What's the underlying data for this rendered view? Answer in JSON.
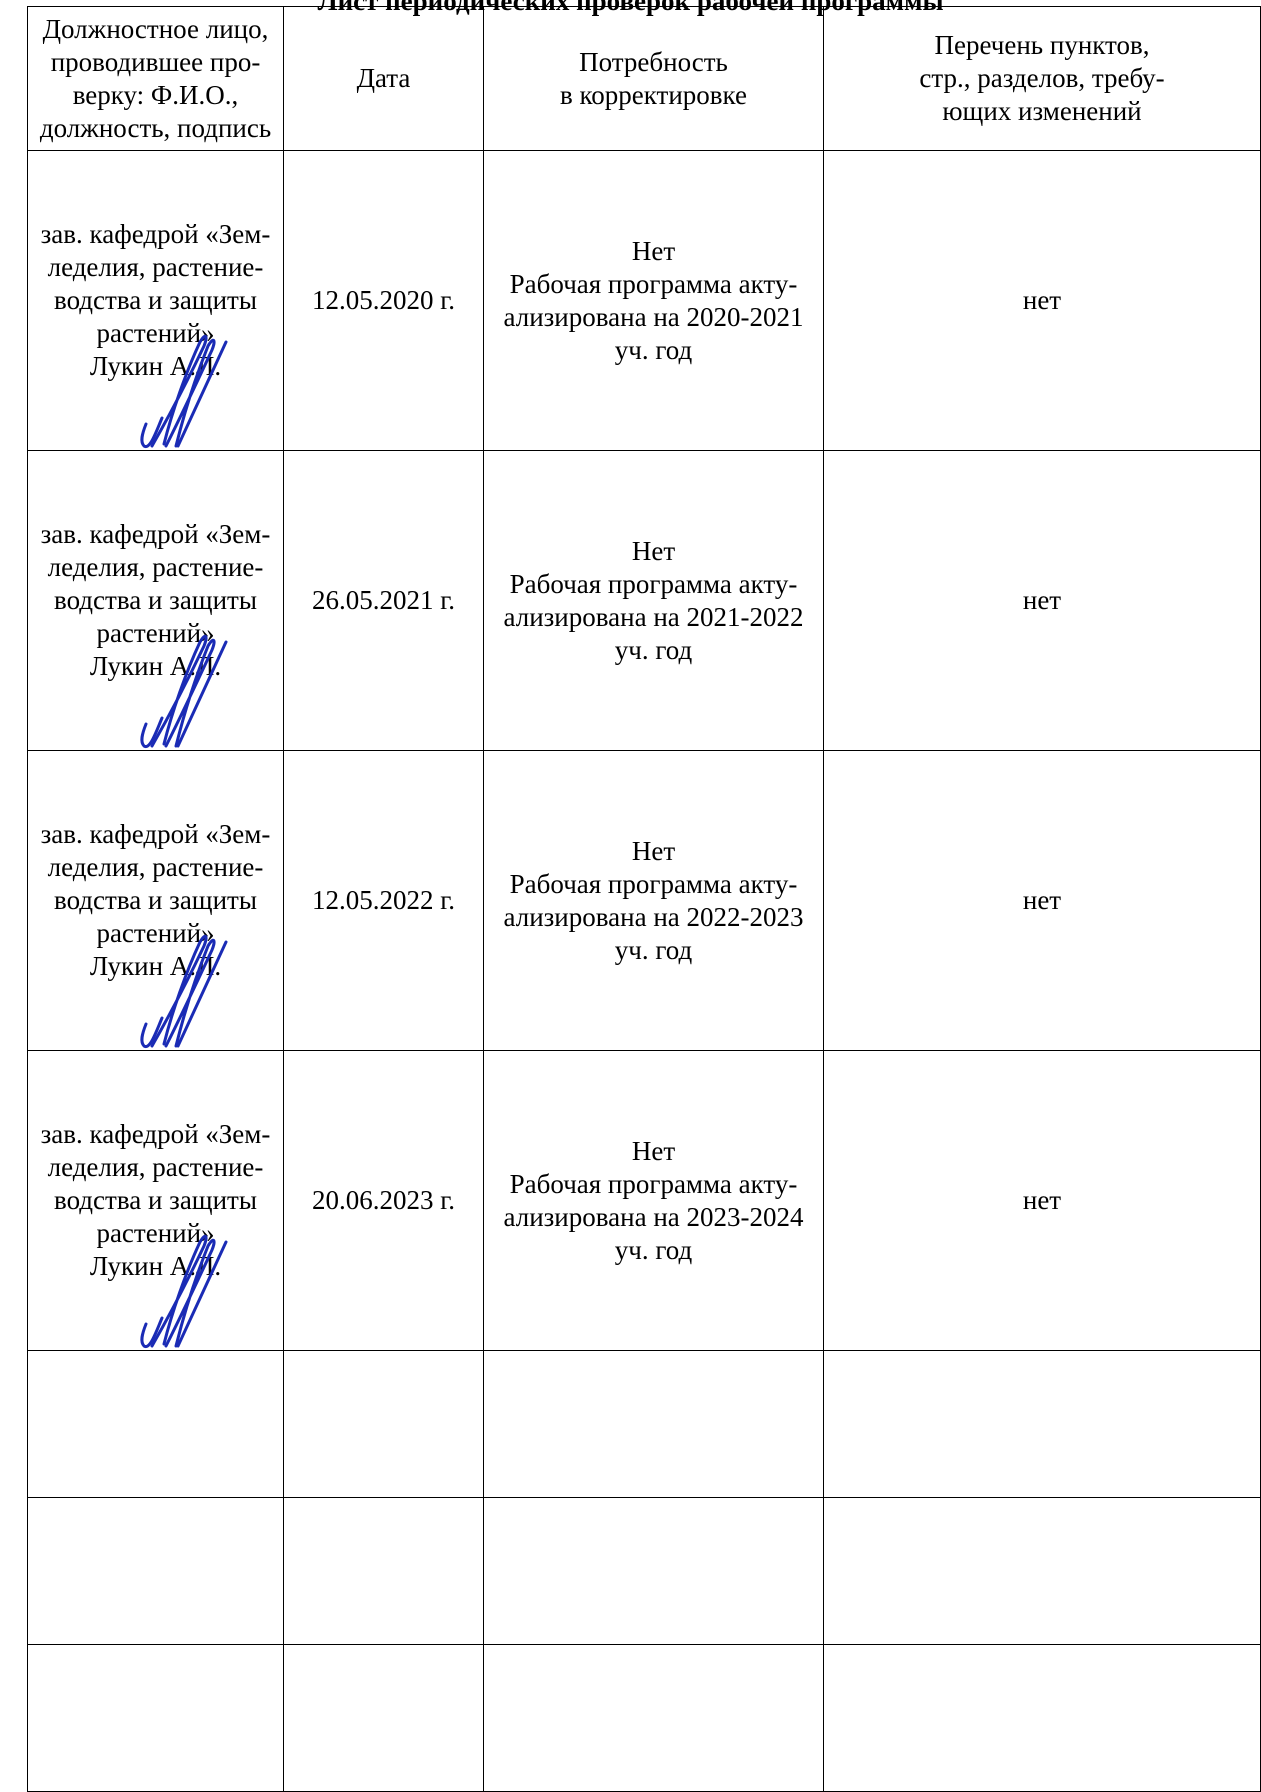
{
  "title": "Лист периодических проверок рабочей программы",
  "table": {
    "headers": [
      "Должностное лицо, проводившее про-верку: Ф.И.О., должность, подпись",
      "Дата",
      "Потребность в корректировке",
      "Перечень пунктов, стр., разделов, требу-ющих изменений"
    ],
    "header_lines": {
      "official": [
        "Должностное лицо,",
        "проводившее про-",
        "верку: Ф.И.О.,",
        "должность, подпись"
      ],
      "date": [
        "Дата"
      ],
      "need": [
        "Потребность",
        "в корректировке"
      ],
      "list": [
        "Перечень пунктов,",
        "стр., разделов, требу-",
        "ющих изменений"
      ]
    },
    "rows": [
      {
        "official_lines": [
          "зав. кафедрой «Зем-",
          "леделия, растение-",
          "водства и защиты",
          "растений»",
          "Лукин А.Л."
        ],
        "date": "12.05.2020 г.",
        "need_lines": [
          "Нет",
          "Рабочая программа акту-",
          "ализирована на 2020-2021",
          "уч. год"
        ],
        "changes": "нет"
      },
      {
        "official_lines": [
          "зав. кафедрой «Зем-",
          "леделия, растение-",
          "водства и защиты",
          "растений»",
          "Лукин А.Л."
        ],
        "date": "26.05.2021 г.",
        "need_lines": [
          "Нет",
          "Рабочая программа акту-",
          "ализирована на 2021-2022",
          "уч. год"
        ],
        "changes": "нет"
      },
      {
        "official_lines": [
          "зав. кафедрой «Зем-",
          "леделия, растение-",
          "водства и защиты",
          "растений»",
          "Лукин А.Л."
        ],
        "date": "12.05.2022 г.",
        "need_lines": [
          "Нет",
          "Рабочая программа акту-",
          "ализирована на 2022-2023",
          "уч. год"
        ],
        "changes": "нет"
      },
      {
        "official_lines": [
          "зав. кафедрой «Зем-",
          "леделия, растение-",
          "водства и защиты",
          "растений»",
          "Лукин А.Л."
        ],
        "date": "20.06.2023 г.",
        "need_lines": [
          "Нет",
          "Рабочая программа акту-",
          "ализирована на 2023-2024",
          "уч. год"
        ],
        "changes": "нет"
      }
    ],
    "empty_row_count": 3
  },
  "colors": {
    "signature_ink": "#1a2bb5",
    "border": "#000000"
  }
}
